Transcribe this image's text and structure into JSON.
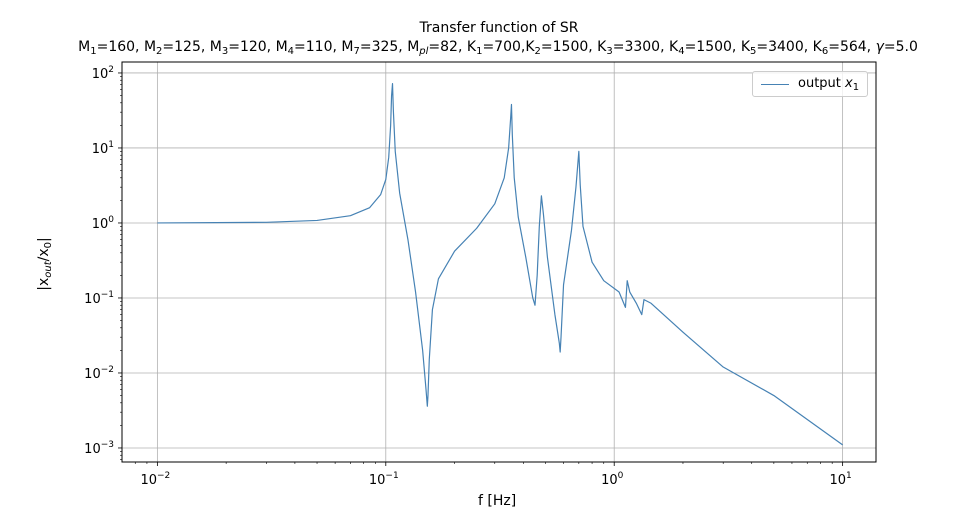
{
  "chart_data": {
    "type": "line",
    "title": "Transfer function of SR",
    "subtitle_segments": [
      {
        "t": "M"
      },
      {
        "t": "1",
        "sub": true
      },
      {
        "t": "=160, M"
      },
      {
        "t": "2",
        "sub": true
      },
      {
        "t": "=125, M"
      },
      {
        "t": "3",
        "sub": true
      },
      {
        "t": "=120, M"
      },
      {
        "t": "4",
        "sub": true
      },
      {
        "t": "=110, M"
      },
      {
        "t": "7",
        "sub": true
      },
      {
        "t": "=325, M"
      },
      {
        "t": "pl",
        "sub": true,
        "italic": true
      },
      {
        "t": "=82, K"
      },
      {
        "t": "1",
        "sub": true
      },
      {
        "t": "=700,K"
      },
      {
        "t": "2",
        "sub": true
      },
      {
        "t": "=1500, K"
      },
      {
        "t": "3",
        "sub": true
      },
      {
        "t": "=3300, K"
      },
      {
        "t": "4",
        "sub": true
      },
      {
        "t": "=1500, K"
      },
      {
        "t": "5",
        "sub": true
      },
      {
        "t": "=3400, K"
      },
      {
        "t": "6",
        "sub": true
      },
      {
        "t": "=564, "
      },
      {
        "t": "γ",
        "italic": true
      },
      {
        "t": "=5.0"
      }
    ],
    "xlabel": "f [Hz]",
    "ylabel_parts": {
      "main": "|x",
      "sub1": "out",
      "mid": "/x",
      "sub2": "0",
      "end": "|"
    },
    "xscale": "log",
    "yscale": "log",
    "xlim": [
      0.007,
      14
    ],
    "ylim": [
      0.00065,
      140
    ],
    "xticks": [
      {
        "value": 0.01,
        "base": "10",
        "exp": "−2"
      },
      {
        "value": 0.1,
        "base": "10",
        "exp": "−1"
      },
      {
        "value": 1,
        "base": "10",
        "exp": "0"
      },
      {
        "value": 10,
        "base": "10",
        "exp": "1"
      }
    ],
    "yticks": [
      {
        "value": 0.001,
        "base": "10",
        "exp": "−3"
      },
      {
        "value": 0.01,
        "base": "10",
        "exp": "−2"
      },
      {
        "value": 0.1,
        "base": "10",
        "exp": "−1"
      },
      {
        "value": 1,
        "base": "10",
        "exp": "0"
      },
      {
        "value": 10,
        "base": "10",
        "exp": "1"
      },
      {
        "value": 100,
        "base": "10",
        "exp": "2"
      }
    ],
    "grid": true,
    "legend_position": "top-right",
    "colors": {
      "series": "#4682b4",
      "grid": "#b0b0b0",
      "axes": "#000000"
    },
    "series": [
      {
        "name": "output x1",
        "legend_label": "output ",
        "legend_var": "x",
        "legend_sub": "1",
        "x": [
          0.01,
          0.03,
          0.05,
          0.07,
          0.085,
          0.095,
          0.1,
          0.103,
          0.105,
          0.106,
          0.107,
          0.108,
          0.11,
          0.115,
          0.125,
          0.135,
          0.145,
          0.15,
          0.152,
          0.153,
          0.155,
          0.16,
          0.17,
          0.2,
          0.25,
          0.3,
          0.33,
          0.345,
          0.352,
          0.355,
          0.358,
          0.365,
          0.38,
          0.41,
          0.44,
          0.45,
          0.46,
          0.47,
          0.48,
          0.49,
          0.51,
          0.55,
          0.575,
          0.58,
          0.585,
          0.6,
          0.65,
          0.68,
          0.7,
          0.71,
          0.73,
          0.8,
          0.9,
          1.05,
          1.12,
          1.14,
          1.17,
          1.25,
          1.32,
          1.35,
          1.45,
          2.0,
          3.0,
          5.0,
          10.0
        ],
        "y": [
          1.0,
          1.02,
          1.08,
          1.25,
          1.6,
          2.4,
          3.8,
          7.5,
          20,
          50,
          72,
          30,
          9,
          2.5,
          0.6,
          0.12,
          0.02,
          0.006,
          0.0036,
          0.005,
          0.015,
          0.07,
          0.18,
          0.42,
          0.85,
          1.8,
          4.0,
          10,
          25,
          38,
          15,
          4,
          1.2,
          0.35,
          0.1,
          0.08,
          0.2,
          0.9,
          2.3,
          1.3,
          0.35,
          0.06,
          0.025,
          0.019,
          0.03,
          0.15,
          0.8,
          3.0,
          9.0,
          3.2,
          0.9,
          0.3,
          0.17,
          0.12,
          0.075,
          0.17,
          0.12,
          0.085,
          0.06,
          0.095,
          0.085,
          0.035,
          0.012,
          0.005,
          0.0011
        ]
      }
    ]
  }
}
